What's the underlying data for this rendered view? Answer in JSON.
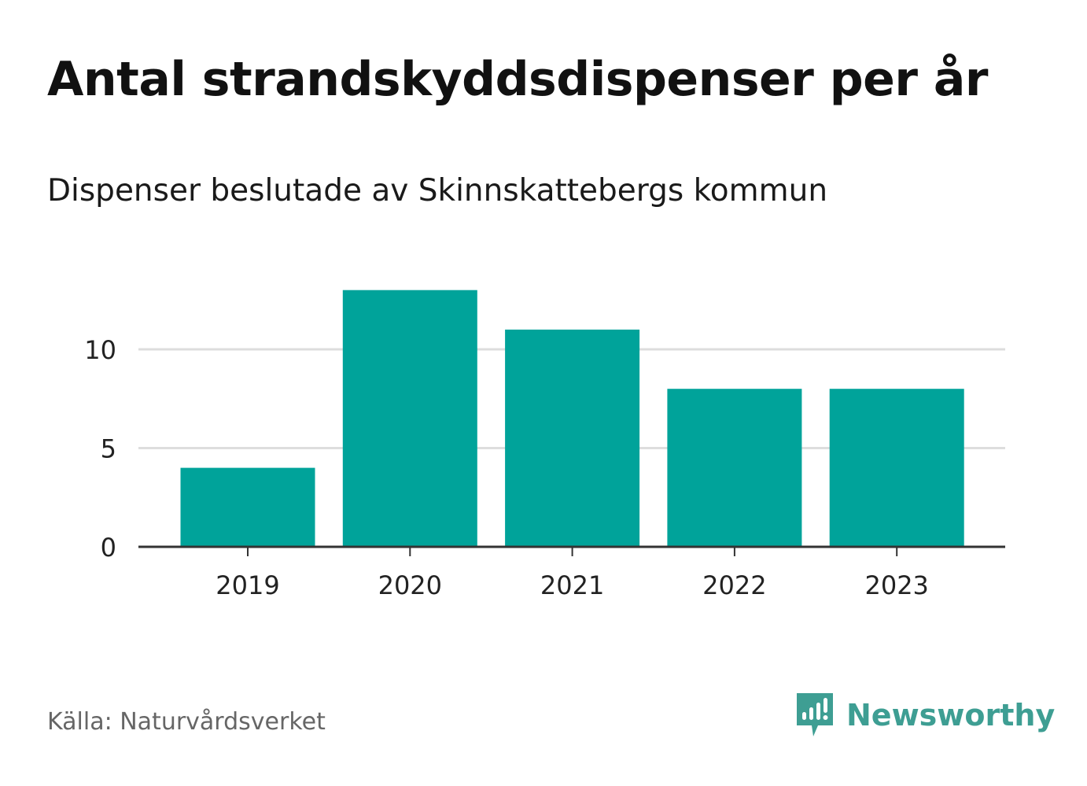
{
  "title": "Antal strandskyddsdispenser per år",
  "subtitle": "Dispenser beslutade av Skinnskattebergs kommun",
  "source": "Källa: Naturvårdsverket",
  "brand": {
    "name": "Newsworthy",
    "icon": "newsworthy-logo-icon"
  },
  "colors": {
    "bar": "#00a39a",
    "grid": "#dddddd",
    "axis": "#333333",
    "brand": "#3e9e93"
  },
  "chart_data": {
    "type": "bar",
    "title": "Antal strandskyddsdispenser per år",
    "subtitle": "Dispenser beslutade av Skinnskattebergs kommun",
    "categories": [
      "2019",
      "2020",
      "2021",
      "2022",
      "2023"
    ],
    "values": [
      4,
      13,
      11,
      8,
      8
    ],
    "xlabel": "",
    "ylabel": "",
    "ylim": [
      0,
      13
    ],
    "yticks": [
      0,
      5,
      10
    ],
    "grid": true
  }
}
